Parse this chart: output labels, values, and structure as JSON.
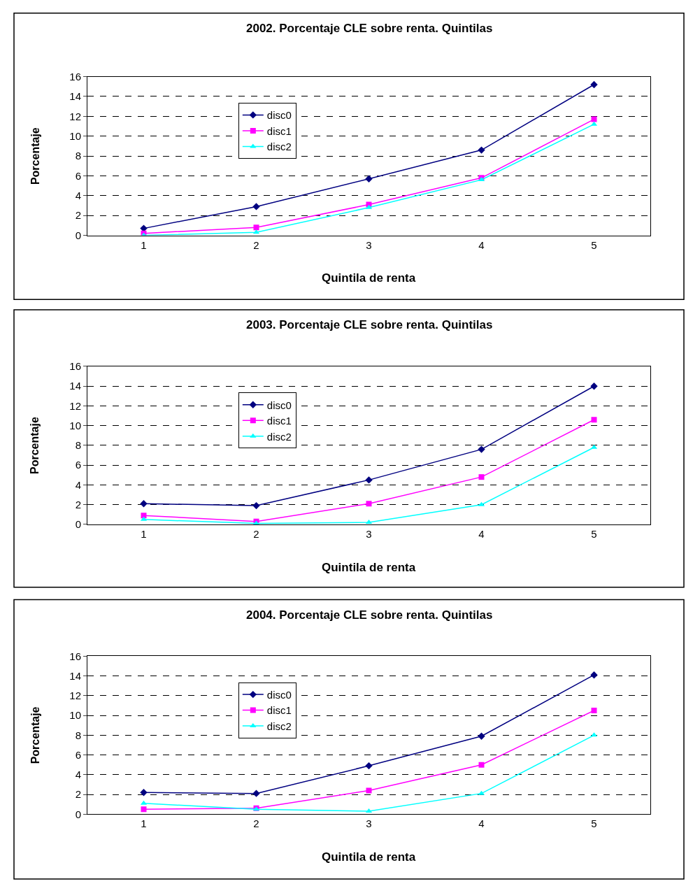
{
  "chart_data": [
    {
      "type": "line",
      "title": "2002. Porcentaje CLE sobre renta. Quintilas",
      "xlabel": "Quintila de renta",
      "ylabel": "Porcentaje",
      "categories": [
        "1",
        "2",
        "3",
        "4",
        "5"
      ],
      "ylim": [
        0,
        16
      ],
      "yticks": [
        0,
        2,
        4,
        6,
        8,
        10,
        12,
        14,
        16
      ],
      "grid": "y",
      "legend": "top left",
      "line_style": "solid",
      "series": [
        {
          "name": "disc0",
          "color": "#000080",
          "marker": "diamond",
          "values": [
            0.7,
            2.9,
            5.7,
            8.6,
            15.2
          ]
        },
        {
          "name": "disc1",
          "color": "#ff00ff",
          "marker": "square",
          "values": [
            0.2,
            0.8,
            3.1,
            5.8,
            11.7
          ]
        },
        {
          "name": "disc2",
          "color": "#00ffff",
          "marker": "triangle",
          "values": [
            0.0,
            0.3,
            2.8,
            5.6,
            11.2
          ]
        }
      ]
    },
    {
      "type": "line",
      "title": "2003. Porcentaje CLE sobre renta. Quintilas",
      "xlabel": "Quintila de renta",
      "ylabel": "Porcentaje",
      "categories": [
        "1",
        "2",
        "3",
        "4",
        "5"
      ],
      "ylim": [
        0,
        16
      ],
      "yticks": [
        0,
        2,
        4,
        6,
        8,
        10,
        12,
        14,
        16
      ],
      "grid": "y",
      "legend": "top left",
      "line_style": "solid",
      "series": [
        {
          "name": "disc0",
          "color": "#000080",
          "marker": "diamond",
          "values": [
            2.1,
            1.9,
            4.5,
            7.6,
            14.0
          ]
        },
        {
          "name": "disc1",
          "color": "#ff00ff",
          "marker": "square",
          "values": [
            0.9,
            0.3,
            2.1,
            4.8,
            10.6
          ]
        },
        {
          "name": "disc2",
          "color": "#00ffff",
          "marker": "triangle",
          "values": [
            0.5,
            0.1,
            0.2,
            2.0,
            7.8
          ]
        }
      ]
    },
    {
      "type": "line",
      "title": "2004. Porcentaje CLE sobre renta. Quintilas",
      "xlabel": "Quintila de renta",
      "ylabel": "Porcentaje",
      "categories": [
        "1",
        "2",
        "3",
        "4",
        "5"
      ],
      "ylim": [
        0,
        16
      ],
      "yticks": [
        0,
        2,
        4,
        6,
        8,
        10,
        12,
        14,
        16
      ],
      "grid": "y",
      "legend": "top left",
      "line_style": "solid",
      "series": [
        {
          "name": "disc0",
          "color": "#000080",
          "marker": "diamond",
          "values": [
            2.2,
            2.1,
            4.9,
            7.9,
            14.1
          ]
        },
        {
          "name": "disc1",
          "color": "#ff00ff",
          "marker": "square",
          "values": [
            0.5,
            0.6,
            2.4,
            5.0,
            10.5
          ]
        },
        {
          "name": "disc2",
          "color": "#00ffff",
          "marker": "triangle",
          "values": [
            1.1,
            0.5,
            0.3,
            2.1,
            8.0
          ]
        }
      ]
    }
  ]
}
